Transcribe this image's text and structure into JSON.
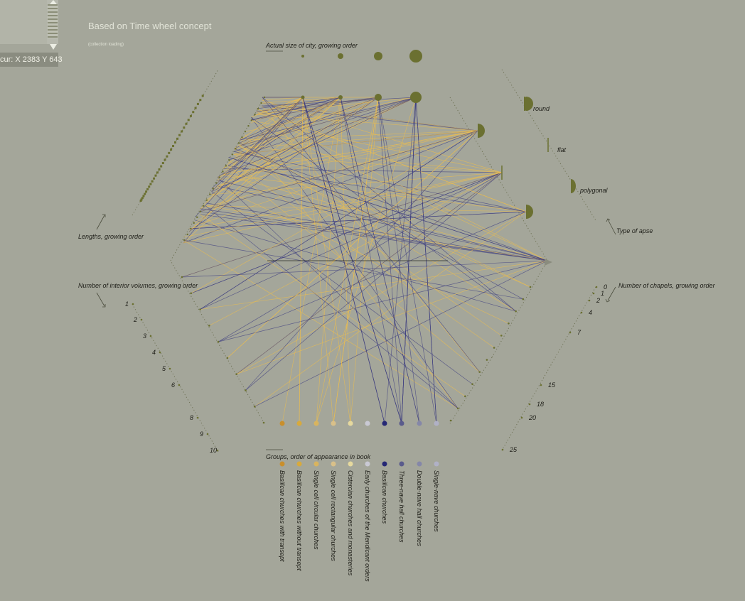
{
  "header": {
    "title": "Based on Time wheel concept",
    "subtitle": "(collection loading)",
    "cursor": "cur: X 2383 Y 643"
  },
  "colors": {
    "background": "#a4a69a",
    "marker": "#6b7031",
    "yellow_line": "#e8bc52",
    "blue_line": "#3e3f80"
  },
  "chart_data": {
    "type": "network",
    "axes": {
      "size": {
        "label": "Actual size of city, growing order",
        "values": [
          1,
          2,
          3,
          4
        ]
      },
      "lengths": {
        "label": "Lengths, growing order"
      },
      "interior": {
        "label": "Number of interior volumes, growing order",
        "ticks": [
          "1",
          "2",
          "3",
          "4",
          "5",
          "6",
          "8",
          "9",
          "10"
        ]
      },
      "groups": {
        "label": "Groups, order of appearance in book",
        "items": [
          {
            "name": "Basilican churches with transept",
            "color": "#c98f2c"
          },
          {
            "name": "Basilican churches without transept",
            "color": "#d8aa3c"
          },
          {
            "name": "Single cell circular churches",
            "color": "#d9b45e"
          },
          {
            "name": "Single cell rectangular churches",
            "color": "#d9c089"
          },
          {
            "name": "Cistercian churches and monasteries",
            "color": "#e6d99e"
          },
          {
            "name": "Early churches of the Mendicant orders",
            "color": "#c9c9d4"
          },
          {
            "name": "Basilican churches",
            "color": "#252775"
          },
          {
            "name": "Three-nave hall churches",
            "color": "#5a5b8c"
          },
          {
            "name": "Double-nave hall churches",
            "color": "#8587a8"
          },
          {
            "name": "Single-nave churches",
            "color": "#b0b1c6"
          }
        ]
      },
      "chapels": {
        "label": "Number of chapels, growing order",
        "ticks": [
          "0",
          "1",
          "2",
          "4",
          "7",
          "15",
          "18",
          "20",
          "25"
        ]
      },
      "apse": {
        "label": "Type of apse",
        "types": [
          "round",
          "flat",
          "polygonal"
        ]
      }
    }
  }
}
